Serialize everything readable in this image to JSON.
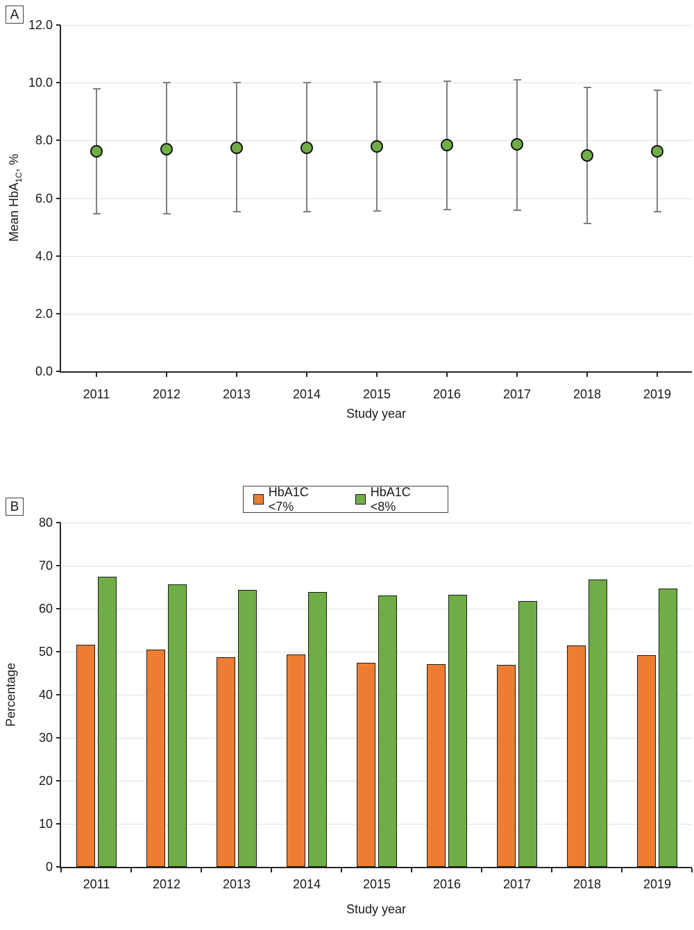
{
  "figure": {
    "panel_a": {
      "label": "A",
      "ylabel_prefix": "Mean HbA",
      "ylabel_sub": "1C",
      "ylabel_suffix": ", %",
      "xlabel": "Study year"
    },
    "panel_b": {
      "label": "B",
      "ylabel": "Percentage",
      "xlabel": "Study year",
      "legend": [
        {
          "label": "HbA1C <7%",
          "color": "#ED7D31"
        },
        {
          "label": "HbA1C <8%",
          "color": "#70AD47"
        }
      ]
    },
    "colors": {
      "green": "#70AD47",
      "orange": "#ED7D31",
      "error_bar_gray": "#7F7F7F",
      "gridline": "#E0E0E0",
      "axis": "#262626"
    }
  },
  "chart_data": [
    {
      "type": "scatter",
      "panel": "A",
      "title": "",
      "xlabel": "Study year",
      "ylabel": "Mean HbA1C, %",
      "categories": [
        "2011",
        "2012",
        "2013",
        "2014",
        "2015",
        "2016",
        "2017",
        "2018",
        "2019"
      ],
      "series": [
        {
          "name": "Mean HbA1C",
          "marker_color": "#70AD47",
          "values": [
            7.62,
            7.7,
            7.75,
            7.74,
            7.79,
            7.83,
            7.86,
            7.48,
            7.62
          ],
          "err_high": [
            9.79,
            10.0,
            10.0,
            10.0,
            10.03,
            10.06,
            10.11,
            9.84,
            9.74
          ],
          "err_low": [
            5.45,
            5.47,
            5.52,
            5.52,
            5.56,
            5.61,
            5.58,
            5.12,
            5.54
          ]
        }
      ],
      "ylim": [
        0,
        12
      ],
      "ytick_step": 2,
      "ytick_decimals": 1,
      "grid": true,
      "legend_position": "none"
    },
    {
      "type": "bar",
      "panel": "B",
      "title": "",
      "xlabel": "Study year",
      "ylabel": "Percentage",
      "categories": [
        "2011",
        "2012",
        "2013",
        "2014",
        "2015",
        "2016",
        "2017",
        "2018",
        "2019"
      ],
      "series": [
        {
          "name": "HbA1C <7%",
          "color": "#ED7D31",
          "values": [
            51.6,
            50.5,
            48.7,
            49.4,
            47.4,
            47.1,
            46.9,
            51.5,
            49.2
          ]
        },
        {
          "name": "HbA1C <8%",
          "color": "#70AD47",
          "values": [
            67.4,
            65.7,
            64.3,
            63.9,
            63.1,
            63.3,
            61.8,
            66.8,
            64.7
          ]
        }
      ],
      "ylim": [
        0,
        80
      ],
      "ytick_step": 10,
      "ytick_decimals": 0,
      "grid": true,
      "legend_position": "top-center"
    }
  ]
}
